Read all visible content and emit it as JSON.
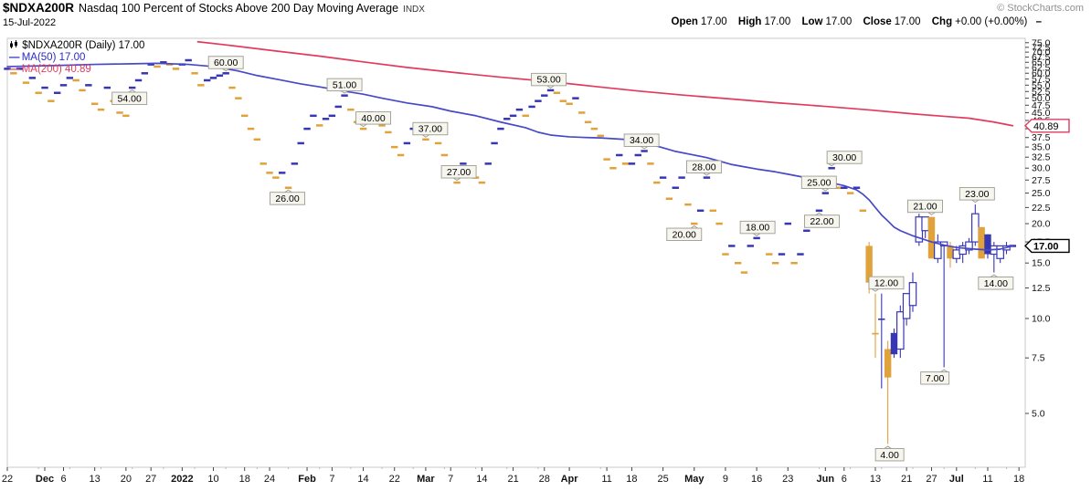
{
  "header": {
    "symbol": "$NDXA200R",
    "description": "Nasdaq 100 Percent of Stocks Above 200 Day Moving Average",
    "exchange": "INDX",
    "date": "15-Jul-2022",
    "copyright": "© StockCharts.com",
    "quote": {
      "open_label": "Open",
      "open": "17.00",
      "high_label": "High",
      "high": "17.00",
      "low_label": "Low",
      "low": "17.00",
      "close_label": "Close",
      "close": "17.00",
      "chg_label": "Chg",
      "chg": "+0.00 (+0.00%)",
      "dash": "–"
    }
  },
  "legend": {
    "main": "$NDXA200R (Daily) 17.00",
    "ma50": "MA(50) 17.00",
    "ma200": "MA(200) 40.89",
    "dash_glyph": "—"
  },
  "colors": {
    "up": "#3737b4",
    "down": "#e0a23a",
    "ma50": "#4848c8",
    "ma200": "#e23a5f",
    "frame": "#c9c9c9",
    "tick": "#444444",
    "label": "#111111",
    "annotation_bg": "#f7f6ee",
    "annotation_border": "#9b9b91"
  },
  "chart_data": {
    "type": "candlestick",
    "title": "$NDXA200R (Daily)",
    "y_scale": "log",
    "grid": false,
    "ylabel": "",
    "xlabel": "",
    "y_ticks": {
      "min": 5,
      "max": 75,
      "step": 2.5
    },
    "y_axis_callouts": [
      {
        "text": "40.89",
        "value": 40.89,
        "color": "#e23a5f",
        "bold": false
      },
      {
        "text": "17.00",
        "value": 17.0,
        "color": "#000000",
        "bold": true
      }
    ],
    "x_ticks": [
      {
        "label": "22",
        "day": 0
      },
      {
        "label": "Dec",
        "day": 6,
        "bold": true
      },
      {
        "label": "6",
        "day": 9
      },
      {
        "label": "13",
        "day": 14
      },
      {
        "label": "20",
        "day": 19
      },
      {
        "label": "27",
        "day": 23
      },
      {
        "label": "2022",
        "day": 28,
        "bold": true
      },
      {
        "label": "10",
        "day": 33
      },
      {
        "label": "18",
        "day": 38
      },
      {
        "label": "24",
        "day": 42
      },
      {
        "label": "Feb",
        "day": 48,
        "bold": true
      },
      {
        "label": "7",
        "day": 52
      },
      {
        "label": "14",
        "day": 57
      },
      {
        "label": "22",
        "day": 62
      },
      {
        "label": "Mar",
        "day": 67,
        "bold": true
      },
      {
        "label": "7",
        "day": 71
      },
      {
        "label": "14",
        "day": 76
      },
      {
        "label": "21",
        "day": 81
      },
      {
        "label": "28",
        "day": 86
      },
      {
        "label": "Apr",
        "day": 90,
        "bold": true
      },
      {
        "label": "11",
        "day": 96
      },
      {
        "label": "18",
        "day": 100
      },
      {
        "label": "25",
        "day": 105
      },
      {
        "label": "May",
        "day": 110,
        "bold": true
      },
      {
        "label": "9",
        "day": 115
      },
      {
        "label": "16",
        "day": 120
      },
      {
        "label": "23",
        "day": 125
      },
      {
        "label": "Jun",
        "day": 131,
        "bold": true
      },
      {
        "label": "6",
        "day": 134
      },
      {
        "label": "13",
        "day": 139
      },
      {
        "label": "21",
        "day": 144
      },
      {
        "label": "27",
        "day": 148
      },
      {
        "label": "Jul",
        "day": 152,
        "bold": true
      },
      {
        "label": "11",
        "day": 157
      },
      {
        "label": "18",
        "day": 162
      }
    ],
    "candles": [
      62,
      60,
      62,
      56,
      58,
      52,
      54,
      49,
      52,
      55,
      58,
      57,
      53,
      55,
      48,
      46,
      54,
      49,
      45,
      44,
      54,
      57,
      60,
      64,
      63,
      65,
      64,
      62,
      64,
      66,
      60,
      55,
      57,
      58,
      59,
      60,
      54,
      50,
      44,
      40,
      37,
      31,
      29,
      28,
      29,
      26,
      31,
      36,
      40,
      44,
      41,
      43,
      44,
      47,
      51,
      46,
      42,
      40,
      45,
      43,
      41,
      39,
      35,
      33,
      36,
      40,
      41,
      37,
      39,
      36,
      33,
      29,
      27,
      31,
      30,
      28,
      27,
      31,
      36,
      40,
      43,
      44,
      46,
      44,
      47,
      49,
      51,
      53,
      52,
      49,
      48,
      50,
      45,
      42,
      40,
      38,
      32,
      30,
      33,
      31,
      31,
      33,
      34,
      31,
      27,
      28,
      24,
      26,
      28,
      23,
      20,
      22,
      28,
      22,
      20,
      16,
      17,
      15,
      14,
      17,
      18,
      20,
      16,
      15,
      16,
      20,
      15,
      16,
      19,
      21,
      22,
      25,
      30,
      26,
      26,
      25,
      26,
      22,
      [
        17,
        17.5,
        12,
        13
      ],
      [
        9,
        12,
        7.5,
        9
      ],
      [
        10,
        12,
        6,
        10
      ],
      [
        8,
        8.5,
        4,
        6.5
      ],
      [
        9,
        9.3,
        7.5,
        7.7
      ],
      [
        8,
        11,
        7.5,
        10.5
      ],
      [
        10,
        12,
        9.5,
        12
      ],
      [
        11,
        14,
        10.5,
        13
      ],
      [
        17.5,
        21.5,
        17,
        21
      ],
      [
        19,
        21,
        18,
        21
      ],
      [
        21,
        21,
        15.5,
        15.5
      ],
      [
        15.5,
        18.5,
        15,
        17.5
      ],
      [
        17,
        17.5,
        7,
        17.5
      ],
      [
        17,
        17.5,
        14.5,
        15.5
      ],
      [
        15.5,
        17,
        15,
        16.5
      ],
      [
        16,
        17.5,
        15,
        17
      ],
      [
        16.5,
        18,
        16,
        17.5
      ],
      [
        17.5,
        23,
        17,
        21.5
      ],
      [
        19.5,
        19.5,
        15.5,
        15.5
      ],
      [
        18.5,
        18.5,
        15.5,
        16
      ],
      [
        16,
        17.5,
        14,
        17
      ],
      [
        15.5,
        17,
        15,
        17
      ],
      [
        16.5,
        17.5,
        16,
        17
      ],
      17
    ],
    "ma50": [
      [
        0,
        63
      ],
      [
        8,
        63.5
      ],
      [
        14,
        64
      ],
      [
        20,
        64.3
      ],
      [
        24,
        64.5
      ],
      [
        29,
        64
      ],
      [
        33,
        63
      ],
      [
        37,
        61
      ],
      [
        40,
        59
      ],
      [
        44,
        57
      ],
      [
        47,
        55.5
      ],
      [
        50,
        54.3
      ],
      [
        53,
        53
      ],
      [
        57,
        51.5
      ],
      [
        60,
        50
      ],
      [
        64,
        48.3
      ],
      [
        68,
        47
      ],
      [
        71,
        45.5
      ],
      [
        75,
        44
      ],
      [
        79,
        42
      ],
      [
        83,
        40.3
      ],
      [
        85,
        39
      ],
      [
        87,
        38.2
      ],
      [
        90,
        37.7
      ],
      [
        93,
        37.5
      ],
      [
        95,
        37.4
      ],
      [
        98,
        37.1
      ],
      [
        100,
        36.9
      ],
      [
        103,
        35.7
      ],
      [
        105,
        34.8
      ],
      [
        107,
        33.9
      ],
      [
        110,
        33
      ],
      [
        112,
        32.4
      ],
      [
        114,
        31.6
      ],
      [
        116,
        30.8
      ],
      [
        118,
        30.3
      ],
      [
        120,
        29.8
      ],
      [
        123,
        29.2
      ],
      [
        125,
        28.7
      ],
      [
        127,
        28.2
      ],
      [
        129,
        27.6
      ],
      [
        131,
        27.2
      ],
      [
        134,
        26.4
      ],
      [
        136,
        25.6
      ],
      [
        137,
        24.8
      ],
      [
        138,
        23.8
      ],
      [
        139,
        22.5
      ],
      [
        140,
        21.3
      ],
      [
        141,
        20.4
      ],
      [
        142,
        19.5
      ],
      [
        143,
        19
      ],
      [
        145,
        18.3
      ],
      [
        148,
        17.5
      ],
      [
        150,
        17.1
      ],
      [
        152,
        16.8
      ],
      [
        155,
        16.6
      ],
      [
        157,
        16.5
      ],
      [
        159,
        16.6
      ],
      [
        161,
        17
      ]
    ],
    "ma200": [
      [
        30.5,
        75.5
      ],
      [
        35,
        73.8
      ],
      [
        43,
        70.6
      ],
      [
        50,
        68
      ],
      [
        57,
        65.2
      ],
      [
        64,
        62.6
      ],
      [
        72,
        60.2
      ],
      [
        79,
        58.3
      ],
      [
        87,
        56.4
      ],
      [
        94,
        54.5
      ],
      [
        101,
        52.7
      ],
      [
        108,
        51.2
      ],
      [
        116,
        49.7
      ],
      [
        123,
        48.4
      ],
      [
        131,
        47.1
      ],
      [
        138,
        45.9
      ],
      [
        145,
        44.6
      ],
      [
        150,
        43.8
      ],
      [
        154,
        43.2
      ],
      [
        158,
        42
      ],
      [
        161,
        40.89
      ]
    ],
    "annotations": [
      {
        "text": "54.00",
        "day": 20,
        "value": 54,
        "place": "below",
        "dx": -3
      },
      {
        "text": "60.00",
        "day": 35,
        "value": 60,
        "place": "above",
        "dx": 0
      },
      {
        "text": "26.00",
        "day": 45,
        "value": 26,
        "place": "below",
        "dx": -1
      },
      {
        "text": "51.00",
        "day": 54,
        "value": 51,
        "place": "above",
        "dx": 0
      },
      {
        "text": "40.00",
        "day": 57,
        "value": 40,
        "place": "above",
        "dx": 11
      },
      {
        "text": "37.00",
        "day": 67,
        "value": 37,
        "place": "above",
        "dx": 5
      },
      {
        "text": "27.00",
        "day": 72,
        "value": 27,
        "place": "above",
        "dx": 2
      },
      {
        "text": "53.00",
        "day": 87,
        "value": 53,
        "place": "above",
        "dx": -2
      },
      {
        "text": "34.00",
        "day": 102,
        "value": 34,
        "place": "above",
        "dx": -3
      },
      {
        "text": "20.00",
        "day": 110,
        "value": 20,
        "place": "below",
        "dx": -11
      },
      {
        "text": "28.00",
        "day": 112,
        "value": 28,
        "place": "above",
        "dx": -3
      },
      {
        "text": "18.00",
        "day": 120,
        "value": 18,
        "place": "above",
        "dx": 1
      },
      {
        "text": "22.00",
        "day": 130,
        "value": 22,
        "place": "below",
        "dx": 3
      },
      {
        "text": "25.00",
        "day": 131,
        "value": 25,
        "place": "above",
        "dx": -7
      },
      {
        "text": "30.00",
        "day": 132,
        "value": 30,
        "place": "above",
        "dx": 14
      },
      {
        "text": "12.00",
        "day": 139,
        "value": 12,
        "place": "above",
        "dx": 12
      },
      {
        "text": "4.00",
        "day": 141,
        "value": 4,
        "place": "below",
        "dx": 2
      },
      {
        "text": "21.00",
        "day": 148,
        "value": 21,
        "place": "above",
        "dx": -7
      },
      {
        "text": "7.00",
        "day": 150,
        "value": 7,
        "place": "below",
        "dx": -10
      },
      {
        "text": "23.00",
        "day": 155,
        "value": 23,
        "place": "above",
        "dx": 2
      },
      {
        "text": "14.00",
        "day": 158,
        "value": 14,
        "place": "below",
        "dx": 2
      }
    ]
  }
}
